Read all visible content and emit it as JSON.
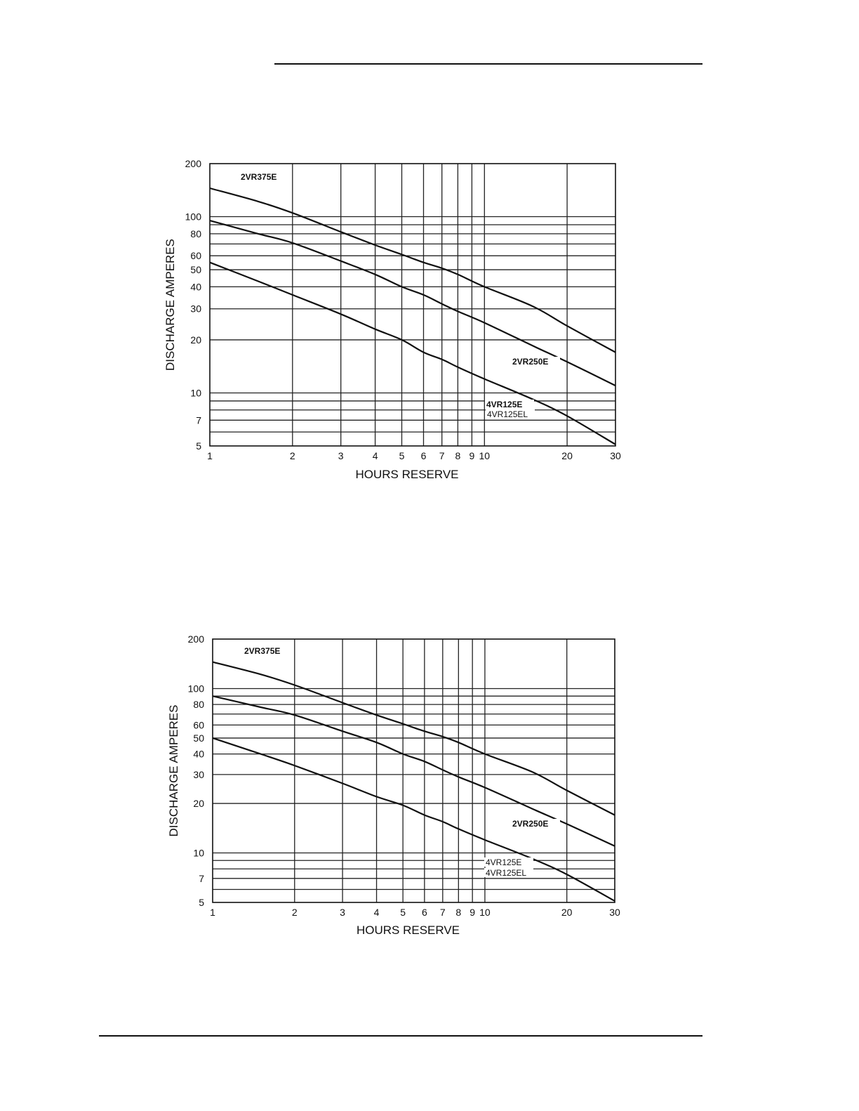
{
  "chart_data": [
    {
      "type": "line",
      "xlabel": "HOURS RESERVE",
      "ylabel": "DISCHARGE AMPERES",
      "xscale": "log",
      "yscale": "log",
      "xlim": [
        1,
        30
      ],
      "ylim": [
        5,
        200
      ],
      "xticks": [
        1,
        2,
        3,
        4,
        5,
        6,
        7,
        8,
        9,
        10,
        20,
        30
      ],
      "yticks": [
        5,
        7,
        10,
        20,
        30,
        40,
        50,
        60,
        80,
        100,
        200
      ],
      "xgrid": [
        2,
        3,
        4,
        5,
        6,
        7,
        8,
        9,
        10,
        20
      ],
      "ygrid": [
        6,
        7,
        8,
        9,
        10,
        20,
        30,
        40,
        50,
        60,
        70,
        80,
        90,
        100
      ],
      "grid": true,
      "series": [
        {
          "name": "2VR375E",
          "x": [
            1,
            1.5,
            2,
            3,
            4,
            5,
            6,
            7,
            8,
            10,
            15,
            20,
            30
          ],
          "y": [
            145,
            122,
            105,
            82,
            69,
            61,
            55,
            51,
            47,
            40,
            31,
            24,
            17
          ]
        },
        {
          "name": "2VR250E",
          "x": [
            1,
            1.5,
            2,
            3,
            4,
            5,
            6,
            7,
            8,
            10,
            15,
            20,
            30
          ],
          "y": [
            95,
            80,
            71,
            56,
            47,
            40,
            36,
            32,
            29,
            25,
            18.5,
            15,
            11
          ]
        },
        {
          "name": "4VR125E",
          "x": [
            1,
            1.5,
            2,
            3,
            4,
            5,
            6,
            7,
            8,
            10,
            15,
            20,
            30
          ],
          "y": [
            55,
            43,
            36,
            28,
            23,
            20,
            17,
            15.5,
            14,
            12,
            9.2,
            7.4,
            5.1
          ]
        }
      ],
      "labels": [
        {
          "text": "2VR375E",
          "at": "top-left"
        },
        {
          "text": "2VR250E",
          "at": "right"
        },
        {
          "text": "4VR125E",
          "at": "lower-right"
        },
        {
          "text": "4VR125EL",
          "at": "lower-right"
        }
      ]
    },
    {
      "type": "line",
      "xlabel": "HOURS RESERVE",
      "ylabel": "DISCHARGE AMPERES",
      "xscale": "log",
      "yscale": "log",
      "xlim": [
        1,
        30
      ],
      "ylim": [
        5,
        200
      ],
      "xticks": [
        1,
        2,
        3,
        4,
        5,
        6,
        7,
        8,
        9,
        10,
        20,
        30
      ],
      "yticks": [
        5,
        7,
        10,
        20,
        30,
        40,
        50,
        60,
        80,
        100,
        200
      ],
      "xgrid": [
        2,
        3,
        4,
        5,
        6,
        7,
        8,
        9,
        10,
        20
      ],
      "ygrid": [
        6,
        7,
        8,
        9,
        10,
        20,
        30,
        40,
        50,
        60,
        70,
        80,
        90,
        100
      ],
      "grid": true,
      "series": [
        {
          "name": "2VR375E",
          "x": [
            1,
            1.5,
            2,
            3,
            4,
            5,
            6,
            7,
            8,
            10,
            15,
            20,
            30
          ],
          "y": [
            145,
            122,
            105,
            82,
            69,
            61,
            55,
            51,
            47,
            40,
            31,
            24,
            17
          ]
        },
        {
          "name": "2VR250E",
          "x": [
            1,
            1.5,
            2,
            3,
            4,
            5,
            6,
            7,
            8,
            10,
            15,
            20,
            30
          ],
          "y": [
            90,
            77,
            69,
            55,
            47,
            40,
            36,
            32,
            29,
            25,
            18.5,
            15,
            11
          ]
        },
        {
          "name": "4VR125E",
          "x": [
            1,
            1.5,
            2,
            3,
            4,
            5,
            6,
            7,
            8,
            10,
            15,
            20,
            30
          ],
          "y": [
            50,
            40,
            34,
            26.5,
            22,
            19.5,
            17,
            15.5,
            14,
            12,
            9.2,
            7.4,
            5.1
          ]
        }
      ],
      "labels": [
        {
          "text": "2VR375E",
          "at": "top-left"
        },
        {
          "text": "2VR250E",
          "at": "right"
        },
        {
          "text": "4VR125E",
          "at": "lower-right"
        },
        {
          "text": "4VR125EL",
          "at": "lower-right"
        }
      ]
    }
  ]
}
